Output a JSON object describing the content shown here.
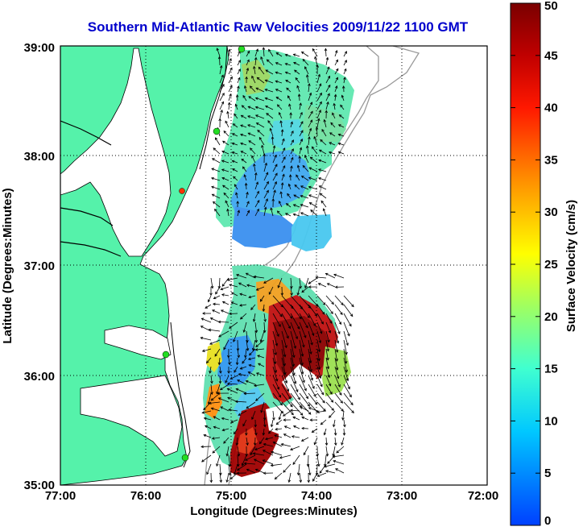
{
  "title": "Southern Mid-Atlantic Raw Velocities 2009/11/22 1100 GMT",
  "xlabel": "Longitude (Degrees:Minutes)",
  "ylabel": "Latitude (Degrees:Minutes)",
  "colorbar": {
    "label": "Surface Velocity (cm/s)",
    "ticks": [
      "0",
      "5",
      "10",
      "15",
      "20",
      "25",
      "30",
      "35",
      "40",
      "45",
      "50"
    ],
    "min": 0,
    "max": 50
  },
  "axes": {
    "x_ticks": [
      "77:00",
      "76:00",
      "75:00",
      "74:00",
      "73:00",
      "72:00"
    ],
    "y_ticks": [
      "39:00",
      "38:00",
      "37:00",
      "36:00",
      "35:00"
    ],
    "xlim": [
      -77,
      -72
    ],
    "ylim": [
      35,
      39
    ],
    "grid": true
  },
  "colors": {
    "land": "#55f2aa",
    "title": "#0000cc",
    "site_marker": "#22dd22",
    "site_marker_off": "#ff3300"
  }
}
